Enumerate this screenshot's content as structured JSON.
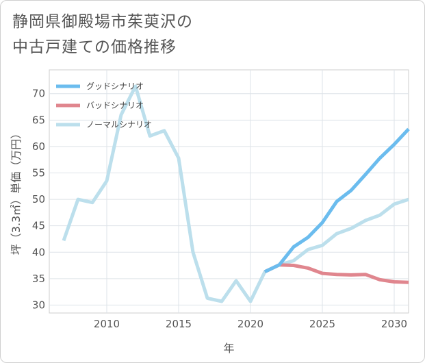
{
  "title_lines": [
    "静岡県御殿場市茱萸沢の",
    "中古戸建ての価格推移"
  ],
  "chart_data": {
    "type": "line",
    "title": "静岡県御殿場市茱萸沢の中古戸建ての価格推移",
    "xlabel": "年",
    "ylabel": "坪（3.3㎡）単価（万円）",
    "xlim": [
      2006,
      2031
    ],
    "ylim": [
      28.5,
      74.5
    ],
    "xticks": [
      2010,
      2015,
      2020,
      2025,
      2030
    ],
    "yticks": [
      30,
      35,
      40,
      45,
      50,
      55,
      60,
      65,
      70
    ],
    "grid": true,
    "legend_position": "top-left",
    "series": [
      {
        "name": "グッドシナリオ",
        "color": "#6bbcee",
        "x": [
          2021,
          2022,
          2023,
          2024,
          2025,
          2026,
          2027,
          2028,
          2029,
          2030,
          2031
        ],
        "y": [
          36.3,
          37.6,
          41.0,
          42.8,
          45.6,
          49.6,
          51.7,
          54.7,
          57.8,
          60.4,
          63.3
        ]
      },
      {
        "name": "バッドシナリオ",
        "color": "#e0868e",
        "x": [
          2021,
          2022,
          2023,
          2024,
          2025,
          2026,
          2027,
          2028,
          2029,
          2030,
          2031
        ],
        "y": [
          36.3,
          37.6,
          37.5,
          37.0,
          36.0,
          35.8,
          35.7,
          35.8,
          34.8,
          34.4,
          34.3
        ]
      },
      {
        "name": "ノーマルシナリオ",
        "color": "#bcdfec",
        "x": [
          2007,
          2008,
          2009,
          2010,
          2011,
          2012,
          2013,
          2014,
          2015,
          2016,
          2017,
          2018,
          2019,
          2020,
          2021,
          2022,
          2023,
          2024,
          2025,
          2026,
          2027,
          2028,
          2029,
          2030,
          2031
        ],
        "y": [
          42.2,
          50.0,
          49.4,
          53.5,
          66.0,
          71.4,
          62.0,
          63.0,
          57.8,
          40.0,
          31.3,
          30.7,
          34.6,
          30.7,
          36.3,
          37.6,
          38.4,
          40.5,
          41.3,
          43.5,
          44.5,
          46.0,
          47.0,
          49.1,
          50.0
        ]
      }
    ]
  }
}
